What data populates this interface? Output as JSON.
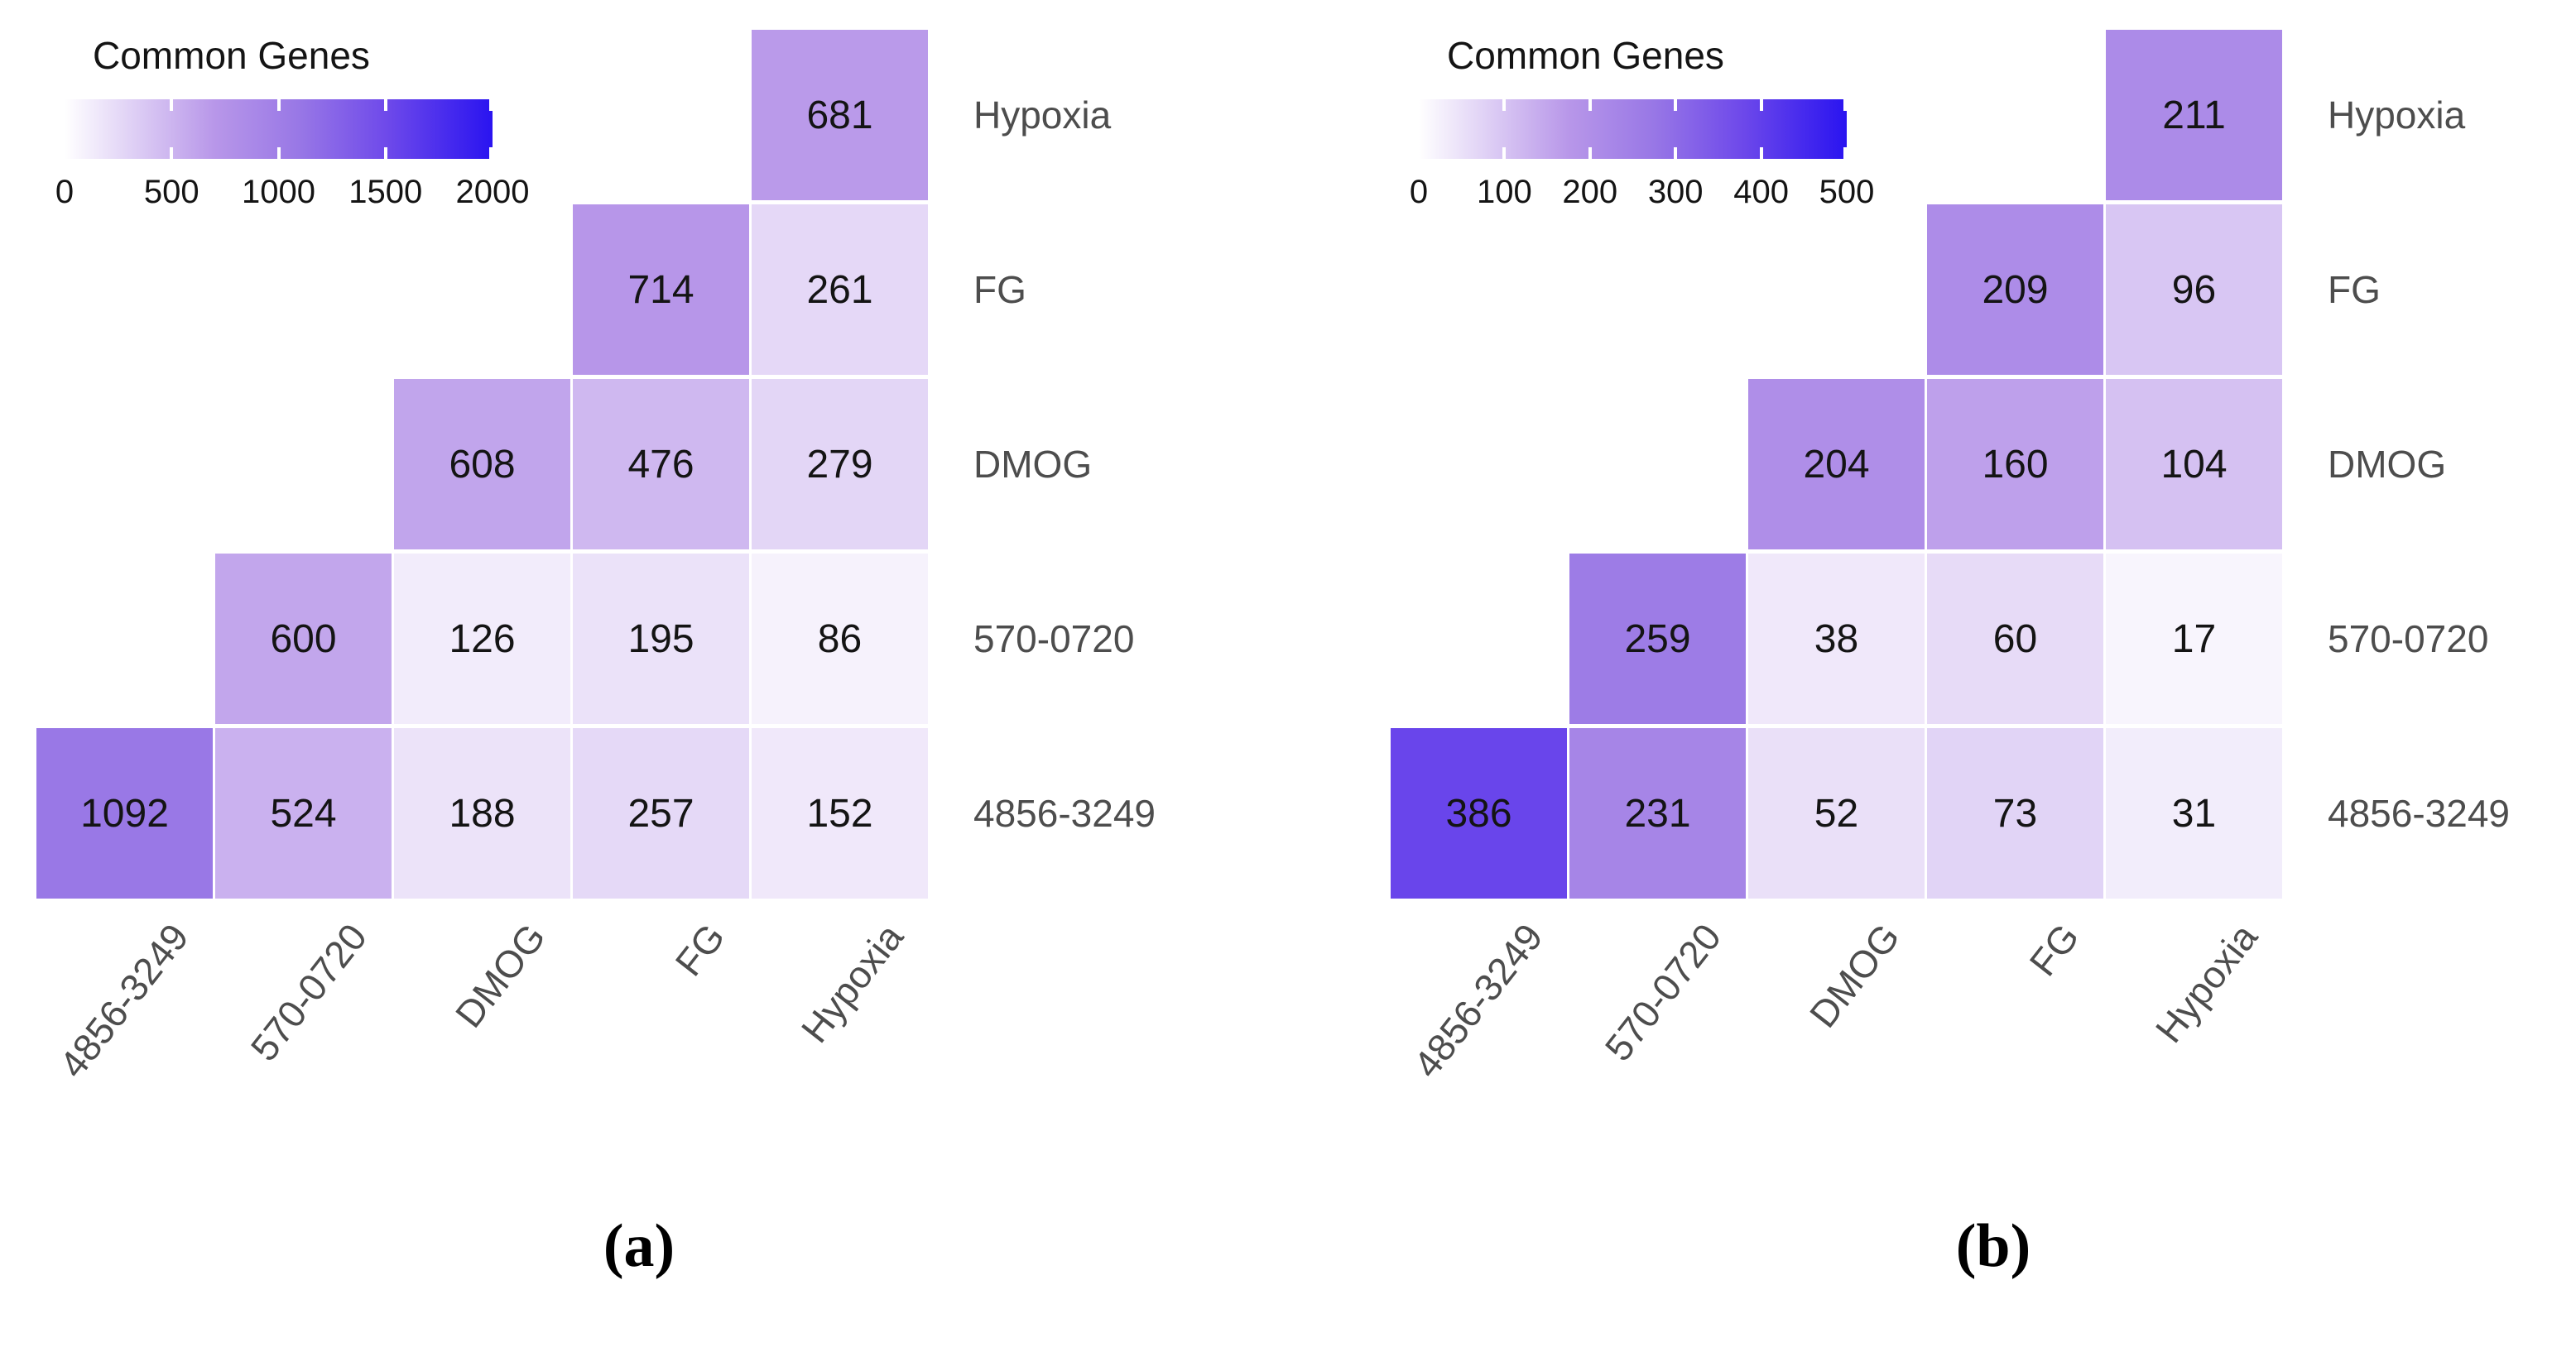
{
  "figure": {
    "captions": {
      "a": "(a)",
      "b": "(b)"
    }
  },
  "colorscale": {
    "description": "white-to-blue fill scale shared by both heatmaps",
    "stops": [
      {
        "pos": 0.0,
        "color": "#FFFFFF"
      },
      {
        "pos": 0.35,
        "color": "#B897E9"
      },
      {
        "pos": 0.55,
        "color": "#9877E6"
      },
      {
        "pos": 0.75,
        "color": "#6F4AEA"
      },
      {
        "pos": 1.0,
        "color": "#2A14F0"
      }
    ]
  },
  "text_colors": {
    "cell_value": "#141414",
    "axis_label": "#4d4d4d",
    "legend_text": "#141414"
  },
  "chart_data": [
    {
      "type": "heatmap",
      "panel_caption": "(a)",
      "legend_title": "Common Genes",
      "legend_position": "top-left",
      "colorbar": {
        "min": 0,
        "max": 2000,
        "tick_labels": [
          "0",
          "500",
          "1000",
          "1500",
          "2000"
        ]
      },
      "x_categories": [
        "4856-3249",
        "570-0720",
        "DMOG",
        "FG",
        "Hypoxia"
      ],
      "y_categories_top_to_bottom": [
        "Hypoxia",
        "FG",
        "DMOG",
        "570-0720",
        "4856-3249"
      ],
      "rows": [
        {
          "label": "Hypoxia",
          "values": [
            null,
            null,
            null,
            null,
            681
          ]
        },
        {
          "label": "FG",
          "values": [
            null,
            null,
            null,
            714,
            261
          ]
        },
        {
          "label": "DMOG",
          "values": [
            null,
            null,
            608,
            476,
            279
          ]
        },
        {
          "label": "570-0720",
          "values": [
            null,
            600,
            126,
            195,
            86
          ]
        },
        {
          "label": "4856-3249",
          "values": [
            1092,
            524,
            188,
            257,
            152
          ]
        }
      ]
    },
    {
      "type": "heatmap",
      "panel_caption": "(b)",
      "legend_title": "Common Genes",
      "legend_position": "top-left",
      "colorbar": {
        "min": 0,
        "max": 500,
        "tick_labels": [
          "0",
          "100",
          "200",
          "300",
          "400",
          "500"
        ]
      },
      "x_categories": [
        "4856-3249",
        "570-0720",
        "DMOG",
        "FG",
        "Hypoxia"
      ],
      "y_categories_top_to_bottom": [
        "Hypoxia",
        "FG",
        "DMOG",
        "570-0720",
        "4856-3249"
      ],
      "rows": [
        {
          "label": "Hypoxia",
          "values": [
            null,
            null,
            null,
            null,
            211
          ]
        },
        {
          "label": "FG",
          "values": [
            null,
            null,
            null,
            209,
            96
          ]
        },
        {
          "label": "DMOG",
          "values": [
            null,
            null,
            204,
            160,
            104
          ]
        },
        {
          "label": "570-0720",
          "values": [
            null,
            259,
            38,
            60,
            17
          ]
        },
        {
          "label": "4856-3249",
          "values": [
            386,
            231,
            52,
            73,
            31
          ]
        }
      ]
    }
  ]
}
